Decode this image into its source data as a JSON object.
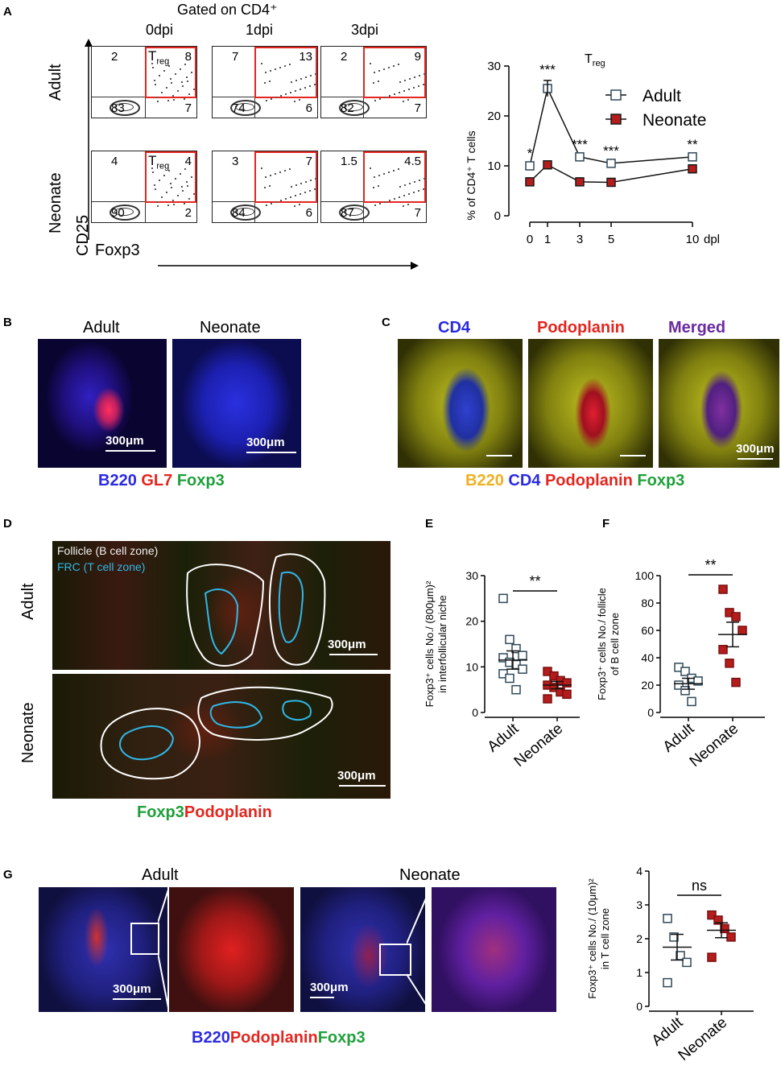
{
  "panels": {
    "A": {
      "label": "A",
      "gated_title": "Gated on CD4⁺",
      "timepoints": [
        "0dpi",
        "1dpi",
        "3dpi"
      ],
      "row_labels": [
        "Adult",
        "Neonate"
      ],
      "y_axis": "CD25",
      "x_axis": "Foxp3",
      "treg_tag": "T",
      "treg_sub": "reg",
      "quadrants": [
        [
          {
            "ul": "2",
            "ur": "8",
            "ll": "83",
            "lr": "7",
            "treg": true
          },
          {
            "ul": "7",
            "ur": "13",
            "ll": "74",
            "lr": "6",
            "treg": false
          },
          {
            "ul": "2",
            "ur": "9",
            "ll": "82",
            "lr": "7",
            "treg": false
          }
        ],
        [
          {
            "ul": "4",
            "ur": "4",
            "ll": "90",
            "lr": "2",
            "treg": true
          },
          {
            "ul": "3",
            "ur": "7",
            "ll": "84",
            "lr": "6",
            "treg": false
          },
          {
            "ul": "1.5",
            "ur": "4.5",
            "ll": "87",
            "lr": "7",
            "treg": false
          }
        ]
      ]
    },
    "B": {
      "label": "B",
      "titles": [
        "Adult",
        "Neonate"
      ],
      "scale": "300μm",
      "stain": [
        {
          "text": "B220",
          "color": "#2a2ae0"
        },
        {
          "text": " GL7",
          "color": "#e3261f"
        },
        {
          "text": " Foxp3",
          "color": "#1fa03a"
        }
      ]
    },
    "C": {
      "label": "C",
      "titles": [
        {
          "text": "CD4",
          "color": "#2a2ae0"
        },
        {
          "text": "Podoplanin",
          "color": "#e3261f"
        },
        {
          "text": "Merged",
          "color": "#6a2aa0"
        }
      ],
      "scale": "300μm",
      "stain": [
        {
          "text": "B220",
          "color": "#f0b020"
        },
        {
          "text": " CD4",
          "color": "#2a2ae0"
        },
        {
          "text": " Podoplanin",
          "color": "#e3261f"
        },
        {
          "text": " Foxp3",
          "color": "#1fa03a"
        }
      ]
    },
    "D": {
      "label": "D",
      "row_labels": [
        "Adult",
        "Neonate"
      ],
      "legend_follicle": "Follicle (B cell zone)",
      "legend_frc": "FRC (T cell zone)",
      "scale": "300μm",
      "stain": [
        {
          "text": "Foxp3",
          "color": "#1fa03a"
        },
        {
          "text": "Podoplanin",
          "color": "#e3261f"
        }
      ]
    },
    "E": {
      "label": "E"
    },
    "F": {
      "label": "F"
    },
    "G": {
      "label": "G",
      "titles": [
        "Adult",
        "Neonate"
      ],
      "scale": "300μm",
      "stain": [
        {
          "text": "B220",
          "color": "#2a2ae0"
        },
        {
          "text": "Podoplanin",
          "color": "#e3261f"
        },
        {
          "text": "Foxp3",
          "color": "#1fa03a"
        }
      ]
    }
  },
  "chart_data": [
    {
      "id": "A-line",
      "type": "line",
      "title": "T",
      "title_sub": "reg",
      "ylabel": "% of CD4⁺ T cells",
      "xlabel": "dpl",
      "x": [
        0,
        1,
        3,
        5,
        10
      ],
      "x_ticks": [
        "0",
        "1",
        "3",
        "5",
        "10"
      ],
      "ylim": [
        0,
        30
      ],
      "y_ticks": [
        "0",
        "10",
        "20",
        "30"
      ],
      "series": [
        {
          "name": "Adult",
          "values": [
            10,
            25.5,
            11.8,
            10.5,
            11.8
          ],
          "color": "#ffffff",
          "edge": "#2f4858"
        },
        {
          "name": "Neonate",
          "values": [
            6.8,
            10.2,
            6.8,
            6.7,
            9.4
          ],
          "color": "#b51c1c",
          "edge": "#1a1a1a"
        }
      ],
      "annotations": [
        "*",
        "***",
        "***",
        "***",
        "**"
      ],
      "legend": "top-right"
    },
    {
      "id": "E-dot",
      "type": "scatter",
      "ylabel_lines": [
        "Foxp3⁺ cells No./ (800μm)²",
        "in interfollicular niche"
      ],
      "categories": [
        "Adult",
        "Neonate"
      ],
      "ylim": [
        0,
        30
      ],
      "y_ticks": [
        "0",
        "10",
        "20",
        "30"
      ],
      "significance": "**",
      "series": [
        {
          "name": "Adult",
          "values": [
            25,
            16,
            14,
            12.5,
            12,
            11,
            10.5,
            9.5,
            8.5,
            7.5,
            5
          ],
          "mean": 11.5,
          "sem": 2.0
        },
        {
          "name": "Neonate",
          "values": [
            9,
            8,
            7,
            6.5,
            6,
            5.5,
            4.5,
            4,
            3
          ],
          "mean": 6,
          "sem": 0.8
        }
      ]
    },
    {
      "id": "F-dot",
      "type": "scatter",
      "ylabel_lines": [
        "Foxp3⁺ cells No./ follicle",
        "of B cell zone"
      ],
      "categories": [
        "Adult",
        "Neonate"
      ],
      "ylim": [
        0,
        100
      ],
      "y_ticks": [
        "0",
        "20",
        "40",
        "60",
        "80",
        "100"
      ],
      "significance": "**",
      "series": [
        {
          "name": "Adult",
          "values": [
            33,
            30,
            25,
            23,
            20,
            16,
            8
          ],
          "mean": 21,
          "sem": 4
        },
        {
          "name": "Neonate",
          "values": [
            90,
            73,
            70,
            60,
            46,
            36,
            22
          ],
          "mean": 57,
          "sem": 9
        }
      ]
    },
    {
      "id": "G-dot",
      "type": "scatter",
      "ylabel_lines": [
        "Foxp3⁺ cells No./ (10μm)²",
        "in T cell zone"
      ],
      "categories": [
        "Adult",
        "Neonate"
      ],
      "ylim": [
        0,
        4
      ],
      "y_ticks": [
        "0",
        "1",
        "2",
        "3",
        "4"
      ],
      "significance": "ns",
      "series": [
        {
          "name": "Adult",
          "values": [
            2.6,
            2.05,
            1.5,
            1.3,
            0.7
          ],
          "mean": 1.75,
          "sem": 0.38
        },
        {
          "name": "Neonate",
          "values": [
            2.7,
            2.55,
            2.3,
            2.05,
            1.45
          ],
          "mean": 2.25,
          "sem": 0.22
        }
      ]
    }
  ]
}
